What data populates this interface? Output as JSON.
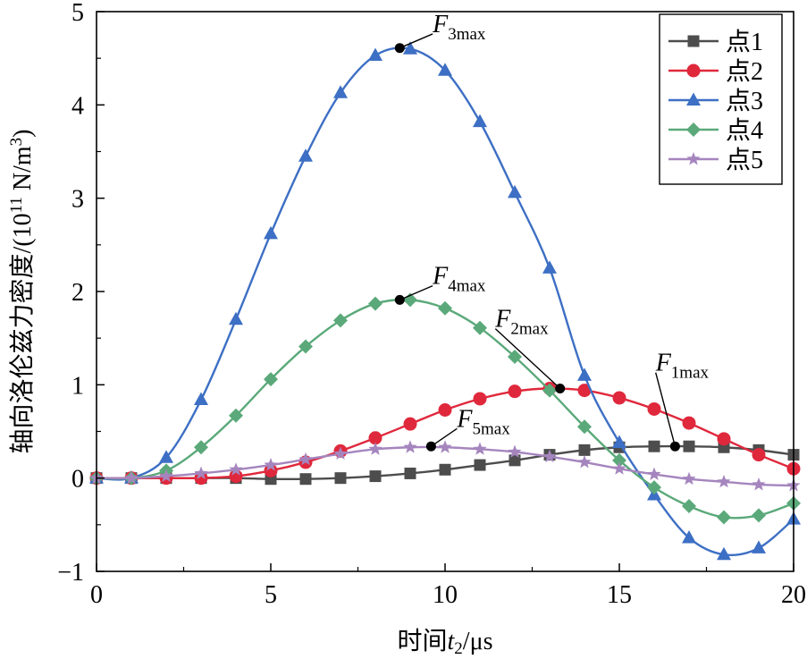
{
  "chart_data": {
    "type": "line",
    "xlabel": {
      "prefix": "时间",
      "var": "t",
      "sub": "2",
      "suffix": "/μs"
    },
    "ylabel": {
      "main": "轴向洛伦兹力密度/(10",
      "sup1": "11",
      "mid": " N/m",
      "sup2": "3",
      "end": ")"
    },
    "xlim": [
      0,
      20
    ],
    "ylim": [
      -1,
      5
    ],
    "x_major_ticks": [
      0,
      5,
      10,
      15,
      20
    ],
    "x_tick_labels": [
      "0",
      "5",
      "10",
      "15",
      "20"
    ],
    "y_major_ticks": [
      -1,
      0,
      1,
      2,
      3,
      4,
      5
    ],
    "y_tick_labels": [
      "−1",
      "0",
      "1",
      "2",
      "3",
      "4",
      "5"
    ],
    "grid": false,
    "legend_position": "top-right",
    "x": [
      0,
      1,
      2,
      3,
      4,
      5,
      6,
      7,
      8,
      9,
      10,
      11,
      12,
      13,
      14,
      15,
      16,
      17,
      18,
      19,
      20
    ],
    "series": [
      {
        "name": "点1",
        "marker": "square",
        "color": "#4d4d4d",
        "values": [
          0,
          0,
          0,
          0,
          0,
          -0.01,
          -0.01,
          0,
          0.02,
          0.05,
          0.09,
          0.14,
          0.19,
          0.25,
          0.3,
          0.33,
          0.34,
          0.34,
          0.33,
          0.3,
          0.25
        ]
      },
      {
        "name": "点2",
        "marker": "circle",
        "color": "#e0283c",
        "values": [
          0,
          0,
          0,
          0,
          0.02,
          0.08,
          0.17,
          0.29,
          0.43,
          0.58,
          0.73,
          0.85,
          0.93,
          0.96,
          0.94,
          0.86,
          0.74,
          0.59,
          0.42,
          0.25,
          0.1
        ]
      },
      {
        "name": "点3",
        "marker": "triangle",
        "color": "#3d6fc4",
        "values": [
          0,
          0,
          0.22,
          0.84,
          1.7,
          2.62,
          3.45,
          4.13,
          4.53,
          4.6,
          4.37,
          3.82,
          3.06,
          2.25,
          1.1,
          0.38,
          -0.18,
          -0.64,
          -0.82,
          -0.75,
          -0.44
        ]
      },
      {
        "name": "点4",
        "marker": "diamond",
        "color": "#5ba97a",
        "values": [
          0,
          0,
          0.08,
          0.33,
          0.67,
          1.06,
          1.41,
          1.69,
          1.87,
          1.91,
          1.82,
          1.61,
          1.3,
          0.94,
          0.55,
          0.19,
          -0.1,
          -0.3,
          -0.42,
          -0.4,
          -0.27
        ]
      },
      {
        "name": "点5",
        "marker": "star",
        "color": "#a585be",
        "values": [
          0,
          0,
          0.02,
          0.05,
          0.09,
          0.14,
          0.2,
          0.26,
          0.31,
          0.33,
          0.33,
          0.31,
          0.28,
          0.23,
          0.17,
          0.1,
          0.04,
          -0.01,
          -0.04,
          -0.07,
          -0.08
        ]
      }
    ],
    "annotations": [
      {
        "label": "F",
        "sub": "3max",
        "x": 8.7,
        "y": 4.61,
        "text_x": 9.9,
        "text_y": 4.78
      },
      {
        "label": "F",
        "sub": "4max",
        "x": 8.7,
        "y": 1.91,
        "text_x": 9.9,
        "text_y": 2.08
      },
      {
        "label": "F",
        "sub": "2max",
        "x": 13.3,
        "y": 0.96,
        "text_x": 11.7,
        "text_y": 1.62
      },
      {
        "label": "F",
        "sub": "1max",
        "x": 16.6,
        "y": 0.34,
        "text_x": 16.3,
        "text_y": 1.15
      },
      {
        "label": "F",
        "sub": "5max",
        "x": 9.6,
        "y": 0.34,
        "text_x": 10.6,
        "text_y": 0.55
      }
    ]
  }
}
